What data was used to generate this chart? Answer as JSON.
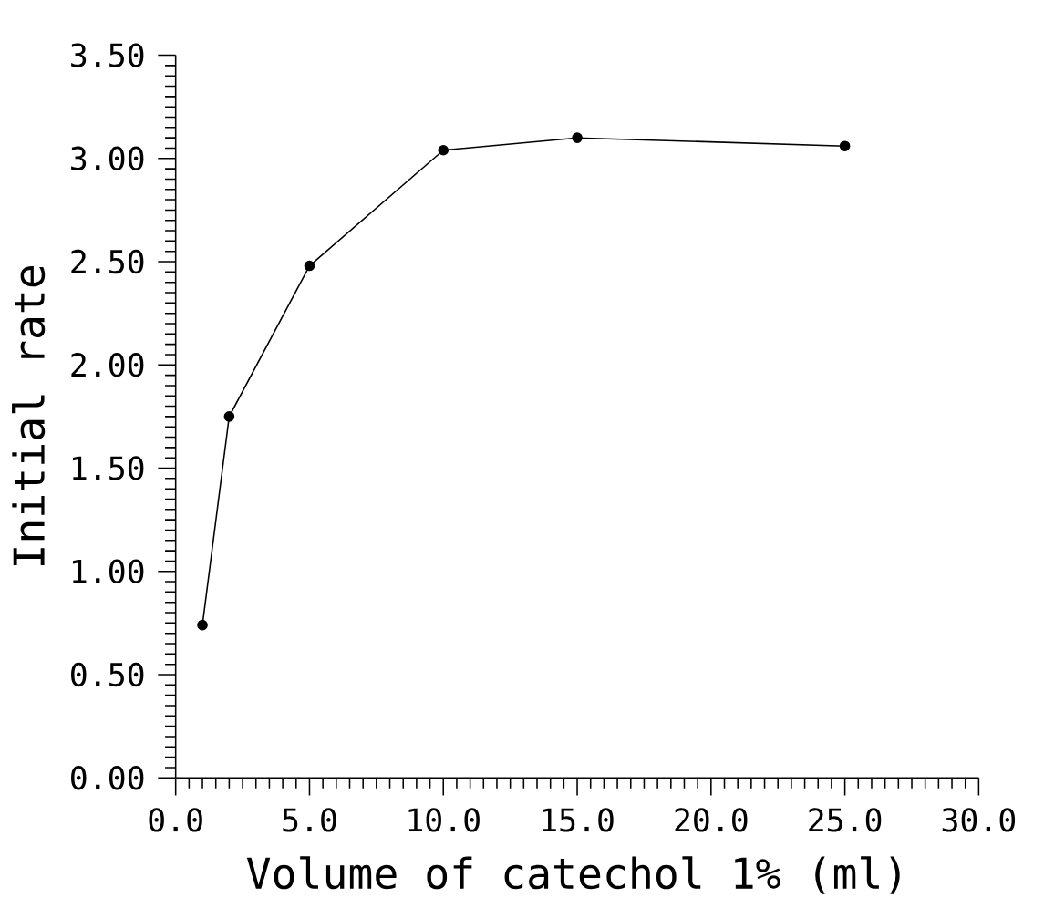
{
  "chart_data": {
    "type": "line",
    "xlabel": "Volume of catechol 1% (ml)",
    "ylabel": "Initial rate",
    "x": [
      1,
      2,
      5,
      10,
      15,
      25
    ],
    "series": [
      {
        "color": "#000000",
        "values": [
          0.74,
          1.75,
          2.48,
          3.04,
          3.1,
          3.06
        ]
      }
    ],
    "xlim": [
      0,
      30
    ],
    "ylim": [
      0,
      3.5
    ],
    "xticks": [
      {
        "value": 0,
        "label": "0.0"
      },
      {
        "value": 5,
        "label": "5.0"
      },
      {
        "value": 10,
        "label": "10.0"
      },
      {
        "value": 15,
        "label": "15.0"
      },
      {
        "value": 20,
        "label": "20.0"
      },
      {
        "value": 25,
        "label": "25.0"
      },
      {
        "value": 30,
        "label": "30.0"
      }
    ],
    "yticks": [
      {
        "value": 0,
        "label": "0.00"
      },
      {
        "value": 0.5,
        "label": "0.50"
      },
      {
        "value": 1,
        "label": "1.00"
      },
      {
        "value": 1.5,
        "label": "1.50"
      },
      {
        "value": 2,
        "label": "2.00"
      },
      {
        "value": 2.5,
        "label": "2.50"
      },
      {
        "value": 3,
        "label": "3.00"
      },
      {
        "value": 3.5,
        "label": "3.50"
      }
    ],
    "marker": "circle",
    "line_style": "solid"
  }
}
